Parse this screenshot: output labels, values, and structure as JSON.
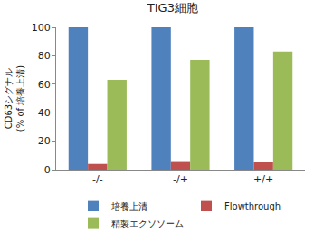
{
  "chart_data": {
    "type": "bar",
    "title": "TIG3細胞",
    "y_label": "CD63シグナル\n(% of 培養上清)",
    "categories": [
      "-/-",
      "-/+",
      "+/+"
    ],
    "series": [
      {
        "name": "培養上清",
        "color": "#4f81bd",
        "values": [
          100,
          100,
          100
        ]
      },
      {
        "name": "Flowthrough",
        "color": "#c0504d",
        "values": [
          4,
          6,
          5.5
        ]
      },
      {
        "name": "精製エクソソーム",
        "color": "#9bbb59",
        "values": [
          63,
          77,
          83
        ]
      }
    ],
    "ylim": [
      0,
      100
    ],
    "yticks": [
      0,
      20,
      40,
      60,
      80,
      100
    ],
    "grid": false,
    "legend": "bottom"
  }
}
